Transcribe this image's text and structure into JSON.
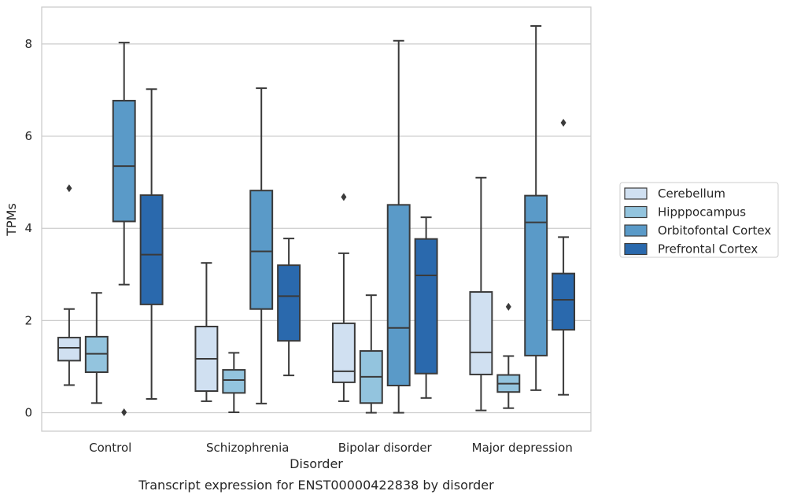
{
  "chart_data": {
    "type": "box",
    "title": "Transcript expression for ENST00000422838 by disorder",
    "xlabel": "Disorder",
    "ylabel": "TPMs",
    "ylim": [
      -0.4,
      8.8
    ],
    "yticks": [
      0,
      2,
      4,
      6,
      8
    ],
    "grid": "horizontal",
    "legend_position": "right",
    "categories": [
      "Control",
      "Schizophrenia",
      "Bipolar disorder",
      "Major depression"
    ],
    "series": [
      {
        "name": "Cerebellum",
        "color": "#d0e0f1",
        "boxes": [
          {
            "whisker_low": 0.6,
            "q1": 1.13,
            "median": 1.41,
            "q3": 1.63,
            "whisker_high": 2.25,
            "outliers": [
              4.87
            ]
          },
          {
            "whisker_low": 0.25,
            "q1": 0.47,
            "median": 1.17,
            "q3": 1.87,
            "whisker_high": 3.25,
            "outliers": []
          },
          {
            "whisker_low": 0.25,
            "q1": 0.66,
            "median": 0.9,
            "q3": 1.94,
            "whisker_high": 3.46,
            "outliers": [
              4.68
            ]
          },
          {
            "whisker_low": 0.05,
            "q1": 0.83,
            "median": 1.31,
            "q3": 2.62,
            "whisker_high": 5.1,
            "outliers": []
          }
        ]
      },
      {
        "name": "Hipppocampus",
        "color": "#93c4de",
        "boxes": [
          {
            "whisker_low": 0.21,
            "q1": 0.88,
            "median": 1.28,
            "q3": 1.65,
            "whisker_high": 2.6,
            "outliers": []
          },
          {
            "whisker_low": 0.01,
            "q1": 0.43,
            "median": 0.71,
            "q3": 0.93,
            "whisker_high": 1.3,
            "outliers": []
          },
          {
            "whisker_low": 0.0,
            "q1": 0.21,
            "median": 0.78,
            "q3": 1.34,
            "whisker_high": 2.55,
            "outliers": []
          },
          {
            "whisker_low": 0.1,
            "q1": 0.45,
            "median": 0.63,
            "q3": 0.82,
            "whisker_high": 1.23,
            "outliers": [
              2.3
            ]
          }
        ]
      },
      {
        "name": "Orbitofontal Cortex",
        "color": "#5a9ac8",
        "boxes": [
          {
            "whisker_low": 2.78,
            "q1": 4.15,
            "median": 5.35,
            "q3": 6.77,
            "whisker_high": 8.03,
            "outliers": [
              0.01
            ]
          },
          {
            "whisker_low": 0.2,
            "q1": 2.25,
            "median": 3.5,
            "q3": 4.82,
            "whisker_high": 7.04,
            "outliers": []
          },
          {
            "whisker_low": 0.0,
            "q1": 0.59,
            "median": 1.84,
            "q3": 4.51,
            "whisker_high": 8.07,
            "outliers": []
          },
          {
            "whisker_low": 0.49,
            "q1": 1.24,
            "median": 4.13,
            "q3": 4.71,
            "whisker_high": 8.39,
            "outliers": []
          }
        ]
      },
      {
        "name": "Prefrontal Cortex",
        "color": "#2a69ad",
        "boxes": [
          {
            "whisker_low": 0.3,
            "q1": 2.35,
            "median": 3.43,
            "q3": 4.72,
            "whisker_high": 7.02,
            "outliers": []
          },
          {
            "whisker_low": 0.81,
            "q1": 1.56,
            "median": 2.53,
            "q3": 3.2,
            "whisker_high": 3.78,
            "outliers": []
          },
          {
            "whisker_low": 0.32,
            "q1": 0.85,
            "median": 2.98,
            "q3": 3.77,
            "whisker_high": 4.24,
            "outliers": []
          },
          {
            "whisker_low": 0.39,
            "q1": 1.8,
            "median": 2.45,
            "q3": 3.02,
            "whisker_high": 3.81,
            "outliers": [
              6.29
            ]
          }
        ]
      }
    ]
  }
}
